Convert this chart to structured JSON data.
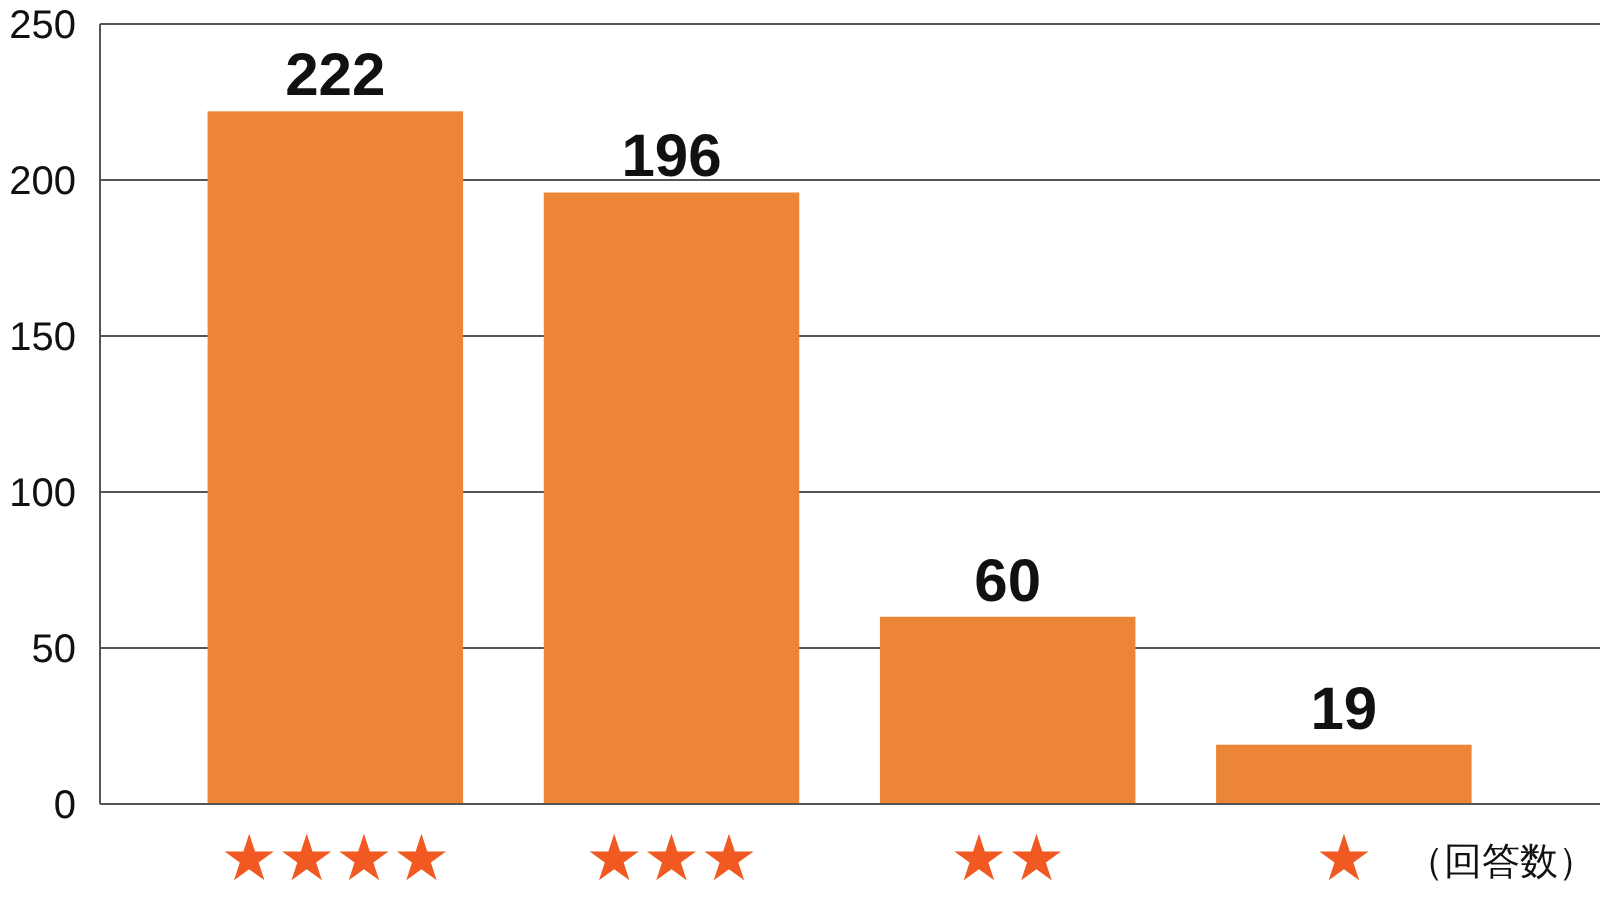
{
  "chart_data": {
    "type": "bar",
    "categories": [
      "★★★★",
      "★★★",
      "★★",
      "★"
    ],
    "values": [
      222,
      196,
      60,
      19
    ],
    "color": "#ed8536",
    "ylim": [
      0,
      250
    ],
    "yticks": [
      0,
      50,
      100,
      150,
      200,
      250
    ],
    "grid": "y",
    "data_labels": true,
    "annotations": [
      "（回答数）"
    ]
  }
}
